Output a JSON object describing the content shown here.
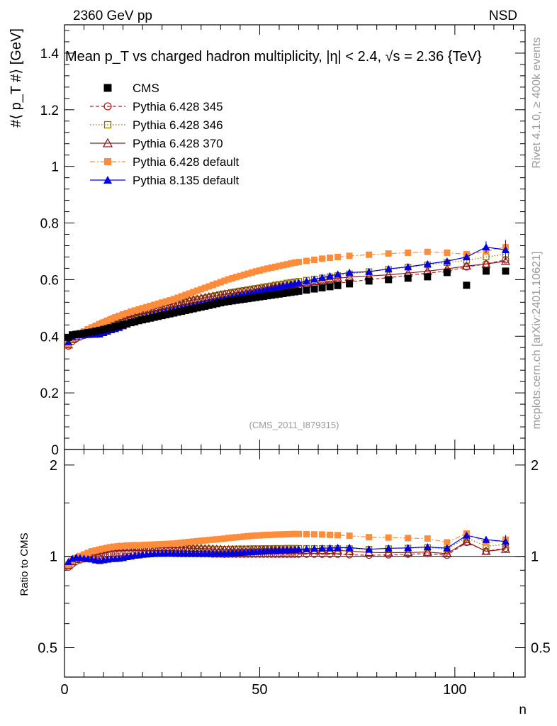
{
  "header": {
    "energy_label": "2360 GeV pp",
    "process_label": "NSD",
    "side_label_top": "Rivet 4.1.0, ≥ 400k events",
    "side_label_bottom": "mcplots.cern.ch [arXiv:2401.10621]"
  },
  "chart_data": {
    "type": "scatter",
    "title": "Mean p_T vs charged hadron multiplicity, |η| < 2.4, √s = 2.36 {TeV}",
    "ylabel": "#⟨ p_T #⟩ [GeV]",
    "xlabel": "n",
    "ratio_ylabel": "Ratio to CMS",
    "analysis_id": "(CMS_2011_I879315)",
    "xlim": [
      0,
      118
    ],
    "ylim": [
      0,
      1.5
    ],
    "ratio_ylim": [
      0.4,
      2.25
    ],
    "main_yticks": [
      0,
      0.2,
      0.4,
      0.6,
      0.8,
      1,
      1.2,
      1.4
    ],
    "main_ytick_labels": [
      "0",
      "0.2",
      "0.4",
      "0.6",
      "0.8",
      "1",
      "1.2",
      "1.4"
    ],
    "ratio_yticks": [
      0.5,
      1,
      2
    ],
    "ratio_ytick_labels": [
      "0.5",
      "1",
      "2"
    ],
    "xticks": [
      0,
      50,
      100
    ],
    "xtick_labels": [
      "0",
      "50",
      "100"
    ],
    "legend_position": "top-left",
    "series": [
      {
        "name": "CMS",
        "color": "#000000",
        "marker": "filled-square",
        "line": "none",
        "x": [
          1,
          2,
          3,
          4,
          5,
          6,
          7,
          8,
          9,
          10,
          11,
          12,
          13,
          14,
          15,
          16,
          17,
          18,
          19,
          20,
          21,
          22,
          23,
          24,
          25,
          26,
          27,
          28,
          29,
          30,
          31,
          32,
          33,
          34,
          35,
          36,
          37,
          38,
          39,
          40,
          41,
          42,
          43,
          44,
          45,
          46,
          47,
          48,
          49,
          50,
          51,
          52,
          53,
          54,
          55,
          56,
          57,
          58,
          59,
          60,
          62,
          64,
          66,
          68,
          70,
          73,
          78,
          83,
          88,
          93,
          98,
          103,
          108,
          113
        ],
        "y": [
          0.396,
          0.405,
          0.407,
          0.409,
          0.411,
          0.413,
          0.415,
          0.418,
          0.421,
          0.424,
          0.427,
          0.43,
          0.434,
          0.437,
          0.441,
          0.444,
          0.448,
          0.451,
          0.455,
          0.458,
          0.461,
          0.464,
          0.467,
          0.47,
          0.473,
          0.476,
          0.479,
          0.482,
          0.485,
          0.488,
          0.491,
          0.494,
          0.497,
          0.5,
          0.503,
          0.506,
          0.509,
          0.512,
          0.515,
          0.518,
          0.521,
          0.523,
          0.525,
          0.527,
          0.529,
          0.531,
          0.533,
          0.535,
          0.537,
          0.539,
          0.541,
          0.543,
          0.545,
          0.547,
          0.549,
          0.551,
          0.553,
          0.555,
          0.557,
          0.559,
          0.563,
          0.567,
          0.571,
          0.575,
          0.579,
          0.585,
          0.595,
          0.6,
          0.605,
          0.61,
          0.625,
          0.58,
          0.63,
          0.63
        ]
      },
      {
        "name": "Pythia 6.428 345",
        "color": "#b22222",
        "marker": "open-circle",
        "line": "dashed",
        "x": [
          1,
          2,
          3,
          4,
          5,
          6,
          7,
          8,
          9,
          10,
          11,
          12,
          13,
          14,
          15,
          16,
          17,
          18,
          19,
          20,
          21,
          22,
          23,
          24,
          25,
          26,
          27,
          28,
          29,
          30,
          31,
          32,
          33,
          34,
          35,
          36,
          37,
          38,
          39,
          40,
          41,
          42,
          43,
          44,
          45,
          46,
          47,
          48,
          49,
          50,
          51,
          52,
          53,
          54,
          55,
          56,
          57,
          58,
          59,
          60,
          62,
          64,
          66,
          68,
          70,
          73,
          78,
          83,
          88,
          93,
          98,
          103,
          108,
          113
        ],
        "y": [
          0.365,
          0.382,
          0.392,
          0.398,
          0.403,
          0.408,
          0.413,
          0.418,
          0.423,
          0.428,
          0.433,
          0.438,
          0.442,
          0.446,
          0.45,
          0.454,
          0.458,
          0.462,
          0.466,
          0.469,
          0.472,
          0.475,
          0.478,
          0.481,
          0.484,
          0.487,
          0.49,
          0.492,
          0.495,
          0.498,
          0.501,
          0.504,
          0.507,
          0.51,
          0.513,
          0.516,
          0.519,
          0.521,
          0.524,
          0.527,
          0.529,
          0.532,
          0.534,
          0.536,
          0.538,
          0.54,
          0.542,
          0.544,
          0.546,
          0.548,
          0.55,
          0.552,
          0.554,
          0.556,
          0.558,
          0.56,
          0.562,
          0.564,
          0.566,
          0.568,
          0.572,
          0.576,
          0.58,
          0.584,
          0.588,
          0.592,
          0.6,
          0.607,
          0.615,
          0.623,
          0.63,
          0.645,
          0.655,
          0.67
        ]
      },
      {
        "name": "Pythia 6.428 346",
        "color": "#8b7500",
        "marker": "open-square",
        "line": "dotted",
        "x": [
          1,
          2,
          3,
          4,
          5,
          6,
          7,
          8,
          9,
          10,
          11,
          12,
          13,
          14,
          15,
          16,
          17,
          18,
          19,
          20,
          21,
          22,
          23,
          24,
          25,
          26,
          27,
          28,
          29,
          30,
          31,
          32,
          33,
          34,
          35,
          36,
          37,
          38,
          39,
          40,
          41,
          42,
          43,
          44,
          45,
          46,
          47,
          48,
          49,
          50,
          51,
          52,
          53,
          54,
          55,
          56,
          57,
          58,
          59,
          60,
          62,
          64,
          66,
          68,
          70,
          73,
          78,
          83,
          88,
          93,
          98,
          103,
          108,
          113
        ],
        "y": [
          0.37,
          0.39,
          0.401,
          0.409,
          0.416,
          0.423,
          0.43,
          0.436,
          0.442,
          0.447,
          0.452,
          0.457,
          0.461,
          0.465,
          0.469,
          0.473,
          0.477,
          0.48,
          0.484,
          0.487,
          0.49,
          0.493,
          0.496,
          0.499,
          0.502,
          0.505,
          0.508,
          0.511,
          0.514,
          0.517,
          0.52,
          0.523,
          0.526,
          0.529,
          0.532,
          0.535,
          0.538,
          0.541,
          0.544,
          0.547,
          0.55,
          0.552,
          0.555,
          0.557,
          0.56,
          0.562,
          0.564,
          0.567,
          0.569,
          0.571,
          0.574,
          0.576,
          0.578,
          0.581,
          0.583,
          0.585,
          0.588,
          0.59,
          0.592,
          0.594,
          0.598,
          0.602,
          0.606,
          0.61,
          0.614,
          0.62,
          0.628,
          0.636,
          0.644,
          0.652,
          0.66,
          0.668,
          0.68,
          0.69
        ]
      },
      {
        "name": "Pythia 6.428 370",
        "color": "#8b1a1a",
        "marker": "open-triangle",
        "line": "solid",
        "x": [
          1,
          2,
          3,
          4,
          5,
          6,
          7,
          8,
          9,
          10,
          11,
          12,
          13,
          14,
          15,
          16,
          17,
          18,
          19,
          20,
          21,
          22,
          23,
          24,
          25,
          26,
          27,
          28,
          29,
          30,
          31,
          32,
          33,
          34,
          35,
          36,
          37,
          38,
          39,
          40,
          41,
          42,
          43,
          44,
          45,
          46,
          47,
          48,
          49,
          50,
          51,
          52,
          53,
          54,
          55,
          56,
          57,
          58,
          59,
          60,
          62,
          64,
          66,
          68,
          70,
          73,
          78,
          83,
          88,
          93,
          98,
          103,
          108,
          113
        ],
        "y": [
          0.37,
          0.389,
          0.398,
          0.405,
          0.412,
          0.419,
          0.426,
          0.433,
          0.44,
          0.446,
          0.452,
          0.458,
          0.463,
          0.468,
          0.472,
          0.476,
          0.48,
          0.484,
          0.488,
          0.491,
          0.494,
          0.497,
          0.5,
          0.503,
          0.506,
          0.509,
          0.512,
          0.515,
          0.518,
          0.521,
          0.524,
          0.526,
          0.529,
          0.531,
          0.534,
          0.536,
          0.539,
          0.541,
          0.543,
          0.546,
          0.548,
          0.55,
          0.552,
          0.554,
          0.556,
          0.558,
          0.56,
          0.562,
          0.564,
          0.566,
          0.568,
          0.57,
          0.572,
          0.574,
          0.576,
          0.578,
          0.58,
          0.582,
          0.584,
          0.586,
          0.59,
          0.594,
          0.598,
          0.602,
          0.605,
          0.609,
          0.613,
          0.617,
          0.623,
          0.63,
          0.638,
          0.648,
          0.655,
          0.665
        ]
      },
      {
        "name": "Pythia 6.428 default",
        "color": "#ff8c3a",
        "marker": "filled-square",
        "line": "dashdot",
        "x": [
          1,
          2,
          3,
          4,
          5,
          6,
          7,
          8,
          9,
          10,
          11,
          12,
          13,
          14,
          15,
          16,
          17,
          18,
          19,
          20,
          21,
          22,
          23,
          24,
          25,
          26,
          27,
          28,
          29,
          30,
          31,
          32,
          33,
          34,
          35,
          36,
          37,
          38,
          39,
          40,
          41,
          42,
          43,
          44,
          45,
          46,
          47,
          48,
          49,
          50,
          51,
          52,
          53,
          54,
          55,
          56,
          57,
          58,
          59,
          60,
          62,
          64,
          66,
          68,
          70,
          73,
          78,
          83,
          88,
          93,
          98,
          103,
          108,
          113
        ],
        "y": [
          0.372,
          0.392,
          0.402,
          0.41,
          0.417,
          0.424,
          0.431,
          0.437,
          0.443,
          0.449,
          0.455,
          0.461,
          0.467,
          0.472,
          0.477,
          0.482,
          0.487,
          0.491,
          0.495,
          0.499,
          0.503,
          0.507,
          0.511,
          0.515,
          0.519,
          0.523,
          0.527,
          0.531,
          0.536,
          0.541,
          0.546,
          0.551,
          0.556,
          0.561,
          0.566,
          0.571,
          0.576,
          0.581,
          0.586,
          0.591,
          0.596,
          0.601,
          0.605,
          0.609,
          0.613,
          0.617,
          0.621,
          0.625,
          0.629,
          0.632,
          0.636,
          0.639,
          0.642,
          0.645,
          0.648,
          0.651,
          0.654,
          0.657,
          0.66,
          0.662,
          0.666,
          0.67,
          0.674,
          0.677,
          0.68,
          0.684,
          0.688,
          0.692,
          0.695,
          0.698,
          0.695,
          0.69,
          0.7,
          0.715
        ]
      },
      {
        "name": "Pythia 8.135 default",
        "color": "#0000e0",
        "marker": "filled-triangle",
        "line": "solid",
        "x": [
          1,
          2,
          3,
          4,
          5,
          6,
          7,
          8,
          9,
          10,
          11,
          12,
          13,
          14,
          15,
          16,
          17,
          18,
          19,
          20,
          21,
          22,
          23,
          24,
          25,
          26,
          27,
          28,
          29,
          30,
          31,
          32,
          33,
          34,
          35,
          36,
          37,
          38,
          39,
          40,
          41,
          42,
          43,
          44,
          45,
          46,
          47,
          48,
          49,
          50,
          51,
          52,
          53,
          54,
          55,
          56,
          57,
          58,
          59,
          60,
          62,
          64,
          66,
          68,
          70,
          73,
          78,
          83,
          88,
          93,
          98,
          103,
          108,
          113
        ],
        "y": [
          0.38,
          0.398,
          0.404,
          0.404,
          0.405,
          0.405,
          0.406,
          0.406,
          0.407,
          0.412,
          0.417,
          0.422,
          0.426,
          0.43,
          0.436,
          0.442,
          0.448,
          0.454,
          0.459,
          0.464,
          0.468,
          0.472,
          0.476,
          0.48,
          0.483,
          0.487,
          0.49,
          0.493,
          0.496,
          0.499,
          0.502,
          0.505,
          0.508,
          0.511,
          0.514,
          0.517,
          0.52,
          0.523,
          0.526,
          0.529,
          0.532,
          0.535,
          0.538,
          0.541,
          0.544,
          0.547,
          0.55,
          0.553,
          0.556,
          0.559,
          0.562,
          0.565,
          0.568,
          0.571,
          0.574,
          0.577,
          0.58,
          0.583,
          0.586,
          0.589,
          0.595,
          0.601,
          0.607,
          0.613,
          0.619,
          0.625,
          0.628,
          0.638,
          0.645,
          0.655,
          0.665,
          0.68,
          0.715,
          0.705
        ],
        "yerr": [
          0,
          0,
          0,
          0,
          0,
          0,
          0,
          0,
          0,
          0,
          0,
          0,
          0,
          0,
          0,
          0,
          0,
          0,
          0,
          0,
          0,
          0,
          0,
          0,
          0,
          0,
          0,
          0,
          0,
          0,
          0,
          0,
          0,
          0,
          0,
          0,
          0,
          0,
          0,
          0,
          0,
          0,
          0,
          0,
          0,
          0,
          0,
          0,
          0,
          0,
          0,
          0,
          0,
          0,
          0,
          0,
          0,
          0,
          0,
          0,
          0,
          0,
          0,
          0,
          0,
          0,
          0.006,
          0.007,
          0.008,
          0.009,
          0.01,
          0.012,
          0.02,
          0.035
        ]
      }
    ]
  }
}
